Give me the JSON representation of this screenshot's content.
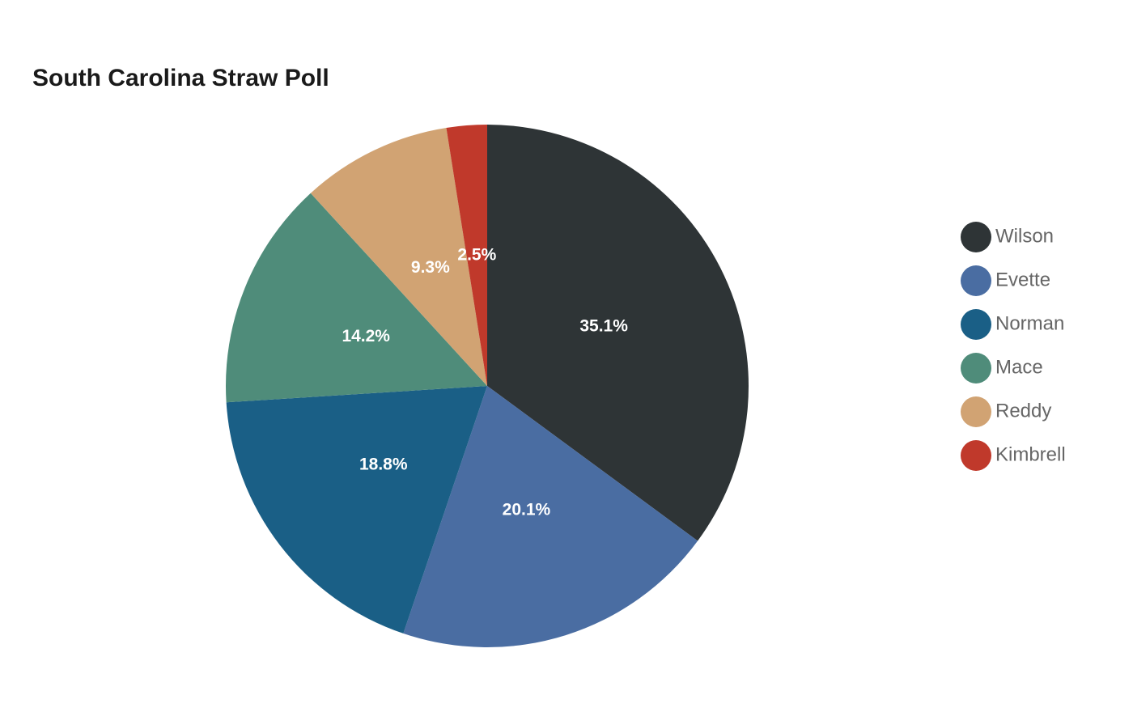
{
  "chart_data": {
    "type": "pie",
    "title": "South Carolina Straw Poll",
    "categories": [
      "Wilson",
      "Evette",
      "Norman",
      "Mace",
      "Reddy",
      "Kimbrell"
    ],
    "values": [
      35.1,
      20.1,
      18.8,
      14.2,
      9.3,
      2.5
    ],
    "value_labels": [
      "35.1%",
      "20.1%",
      "18.8%",
      "14.2%",
      "9.3%",
      "2.5%"
    ],
    "colors": [
      "#2e3436",
      "#4a6da2",
      "#1a5f86",
      "#4f8c7a",
      "#d1a373",
      "#c0392b"
    ],
    "legend": "right"
  }
}
